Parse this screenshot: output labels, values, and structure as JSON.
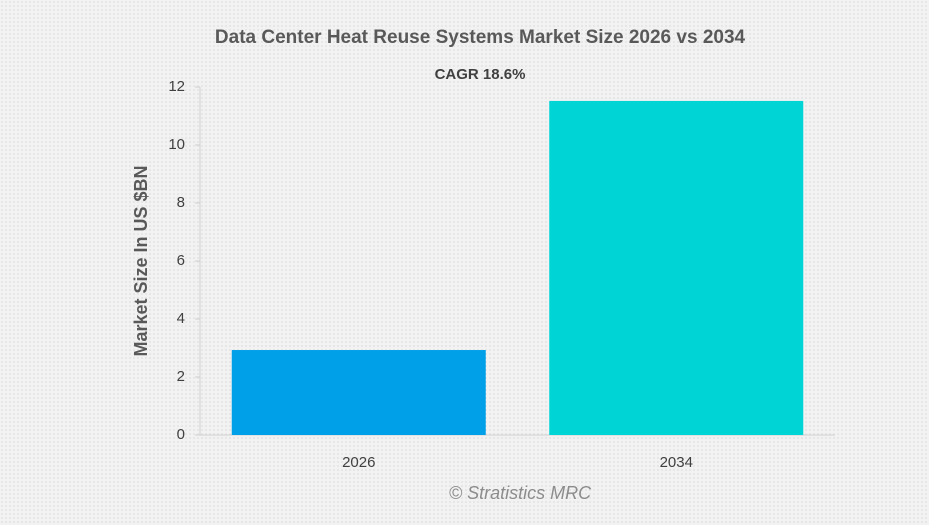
{
  "chart_data": {
    "type": "bar",
    "title": "Data Center Heat Reuse Systems Market Size 2026 vs 2034",
    "annotation": "CAGR 18.6%",
    "ylabel": "Market Size In US $BN",
    "watermark": "© Stratistics MRC",
    "categories": [
      "2026",
      "2034"
    ],
    "values": [
      2.93,
      11.52
    ],
    "colors": [
      "#00a0e9",
      "#00d4d4"
    ],
    "ylim": [
      0,
      12
    ],
    "yticks": [
      0,
      2,
      4,
      6,
      8,
      10,
      12
    ]
  }
}
